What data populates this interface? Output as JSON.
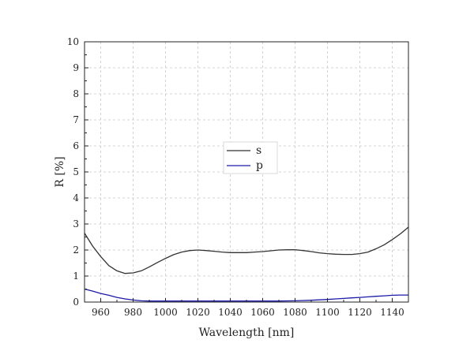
{
  "chart_data": {
    "type": "line",
    "xlabel": "Wavelength [nm]",
    "ylabel": "R [%]",
    "xlim": [
      950,
      1150
    ],
    "ylim": [
      0,
      10
    ],
    "x_ticks": [
      "960",
      "980",
      "1000",
      "1020",
      "1040",
      "1060",
      "1080",
      "1100",
      "1120",
      "1140"
    ],
    "y_ticks": [
      "0",
      "1",
      "2",
      "3",
      "4",
      "5",
      "6",
      "7",
      "8",
      "9",
      "10"
    ],
    "grid": true,
    "grid_style": "dashed",
    "legend_position": "center",
    "series": [
      {
        "name": "s",
        "color": "#333333",
        "x": [
          950,
          955,
          960,
          965,
          970,
          975,
          980,
          985,
          990,
          995,
          1000,
          1005,
          1010,
          1015,
          1020,
          1025,
          1030,
          1035,
          1040,
          1045,
          1050,
          1055,
          1060,
          1065,
          1070,
          1075,
          1080,
          1085,
          1090,
          1095,
          1100,
          1105,
          1110,
          1115,
          1120,
          1125,
          1130,
          1135,
          1140,
          1145,
          1150
        ],
        "y": [
          2.65,
          2.15,
          1.75,
          1.4,
          1.2,
          1.1,
          1.12,
          1.2,
          1.35,
          1.52,
          1.68,
          1.82,
          1.92,
          1.98,
          2.0,
          1.98,
          1.95,
          1.92,
          1.9,
          1.9,
          1.9,
          1.92,
          1.94,
          1.97,
          2.0,
          2.01,
          2.01,
          1.98,
          1.94,
          1.89,
          1.86,
          1.84,
          1.83,
          1.83,
          1.86,
          1.92,
          2.05,
          2.2,
          2.4,
          2.62,
          2.88
        ]
      },
      {
        "name": "p",
        "color": "#1a1aa6",
        "x": [
          950,
          955,
          960,
          965,
          970,
          975,
          980,
          985,
          990,
          995,
          1000,
          1010,
          1020,
          1030,
          1040,
          1050,
          1060,
          1070,
          1080,
          1090,
          1100,
          1105,
          1110,
          1115,
          1120,
          1125,
          1130,
          1135,
          1140,
          1145,
          1150
        ],
        "y": [
          0.5,
          0.42,
          0.33,
          0.26,
          0.18,
          0.12,
          0.08,
          0.05,
          0.04,
          0.04,
          0.04,
          0.04,
          0.04,
          0.04,
          0.04,
          0.04,
          0.04,
          0.04,
          0.05,
          0.07,
          0.1,
          0.12,
          0.14,
          0.16,
          0.18,
          0.2,
          0.22,
          0.24,
          0.26,
          0.27,
          0.27
        ]
      }
    ]
  }
}
